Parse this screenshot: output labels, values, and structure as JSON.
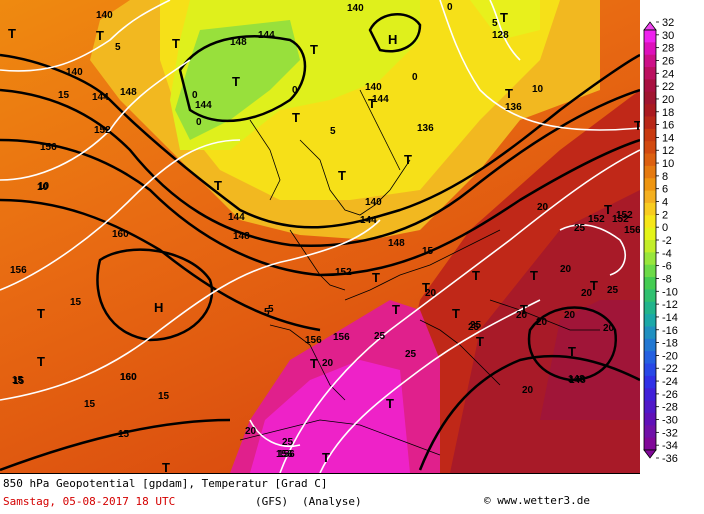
{
  "footer": {
    "title": "850 hPa Geopotential [gpdam], Temperatur [Grad C]",
    "date": "Samstag, 05-08-2017  18 UTC",
    "model": "(GFS)",
    "run": "(Analyse)",
    "copyright": "www.wetter3.de"
  },
  "legend": {
    "labels": [
      "32",
      "30",
      "28",
      "26",
      "24",
      "22",
      "20",
      "18",
      "16",
      "14",
      "12",
      "10",
      "8",
      "6",
      "4",
      "2",
      "0",
      "-2",
      "-4",
      "-6",
      "-8",
      "-10",
      "-12",
      "-14",
      "-16",
      "-18",
      "-20",
      "-22",
      "-24",
      "-26",
      "-28",
      "-30",
      "-32",
      "-34",
      "-36"
    ],
    "colors": [
      "#ee22ee",
      "#dd10bb",
      "#cc1088",
      "#bb1060",
      "#a81040",
      "#a01530",
      "#aa1a20",
      "#b82818",
      "#c83a10",
      "#d24a10",
      "#dc6010",
      "#e57a10",
      "#ee9510",
      "#f4b020",
      "#f8cc20",
      "#f6e618",
      "#e4f418",
      "#c2ee2a",
      "#98e63c",
      "#6cda48",
      "#44cc52",
      "#30c070",
      "#22b48c",
      "#1ca8a8",
      "#2090c0",
      "#2278d2",
      "#2460e0",
      "#2848e6",
      "#3030e6",
      "#4020d8",
      "#5018c8",
      "#6010b8",
      "#7010a8",
      "#800898"
    ]
  },
  "map": {
    "isolines_geo": [
      "140",
      "140",
      "148",
      "144",
      "144",
      "5",
      "0",
      "0",
      "140",
      "128",
      "5",
      "140",
      "144",
      "148",
      "152",
      "156",
      "0",
      "0",
      "10",
      "144",
      "0",
      "5",
      "15",
      "10",
      "136",
      "136",
      "140",
      "144",
      "144",
      "152",
      "148",
      "160",
      "152",
      "156",
      "156",
      "160",
      "156",
      "156",
      "152",
      "152",
      "148",
      "156",
      "160",
      "5",
      "15",
      "15",
      "15",
      "15",
      "15",
      "20",
      "20",
      "20",
      "25",
      "25",
      "25",
      "20",
      "20",
      "25",
      "20",
      "20",
      "148",
      "25",
      "20",
      "20",
      "20",
      "15",
      "25",
      "25",
      "20",
      "5",
      "10",
      "15",
      "148",
      "156"
    ],
    "symbols": [
      "T",
      "T",
      "T",
      "H",
      "T",
      "T",
      "T",
      "T",
      "T",
      "T",
      "T",
      "T",
      "T",
      "T",
      "H",
      "T",
      "T",
      "T",
      "T",
      "T",
      "T",
      "T",
      "T",
      "T",
      "T",
      "T",
      "T",
      "T",
      "T",
      "T",
      "T",
      "T"
    ]
  }
}
